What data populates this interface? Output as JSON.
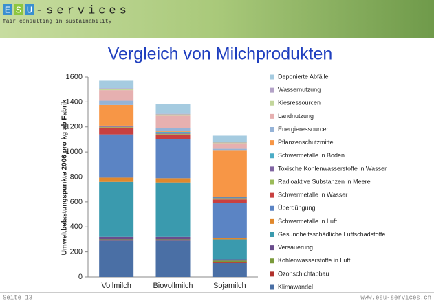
{
  "header": {
    "logo_letters": [
      "E",
      "S",
      "U"
    ],
    "brand": "-services",
    "tagline": "fair consulting in sustainability"
  },
  "footer": {
    "page": "Seite 13",
    "url": "www.esu-services.ch"
  },
  "chart_data": {
    "type": "stacked_bar",
    "title": "Vergleich von Milchprodukten",
    "y_label": "Umweltbelastungspunkte 2006 pro kg ab Fabrik",
    "categories": [
      "Vollmilch",
      "Biovollmilch",
      "Sojamilch"
    ],
    "ylim": [
      0,
      1600
    ],
    "yticks": [
      0,
      200,
      400,
      600,
      800,
      1000,
      1200,
      1400,
      1600
    ],
    "grid": false,
    "legend": "right",
    "series": [
      {
        "name": "Klimawandel",
        "color": "#4a6fa5",
        "values": [
          290,
          290,
          110
        ]
      },
      {
        "name": "Ozonschichtabbau",
        "color": "#b0302c",
        "values": [
          5,
          5,
          5
        ]
      },
      {
        "name": "Kohlenwasserstoffe in Luft",
        "color": "#7a9a3a",
        "values": [
          5,
          5,
          15
        ]
      },
      {
        "name": "Versauerung",
        "color": "#6a4c8c",
        "values": [
          20,
          20,
          10
        ]
      },
      {
        "name": "Gesundheitsschädliche Luftschadstoffe",
        "color": "#3a9aae",
        "values": [
          440,
          435,
          160
        ]
      },
      {
        "name": "Schwermetalle in Luft",
        "color": "#e0882c",
        "values": [
          35,
          35,
          10
        ]
      },
      {
        "name": "Überdüngung",
        "color": "#5b84c4",
        "values": [
          345,
          310,
          280
        ]
      },
      {
        "name": "Schwermetalle in Wasser",
        "color": "#c84040",
        "values": [
          55,
          40,
          30
        ]
      },
      {
        "name": "Radioaktive Substanzen in Meere",
        "color": "#9bbb59",
        "values": [
          5,
          5,
          10
        ]
      },
      {
        "name": "Toxische Kohlenwasserstoffe in Wasser",
        "color": "#8064a2",
        "values": [
          5,
          5,
          5
        ]
      },
      {
        "name": "Schwermetalle in Boden",
        "color": "#4bacc6",
        "values": [
          5,
          10,
          5
        ]
      },
      {
        "name": "Pflanzenschutzmittel",
        "color": "#f79646",
        "values": [
          165,
          5,
          370
        ]
      },
      {
        "name": "Energieressourcen",
        "color": "#95b3d7",
        "values": [
          35,
          25,
          15
        ]
      },
      {
        "name": "Landnutzung",
        "color": "#e6b0b0",
        "values": [
          85,
          100,
          45
        ]
      },
      {
        "name": "Kiesressourcen",
        "color": "#c3d69b",
        "values": [
          10,
          10,
          5
        ]
      },
      {
        "name": "Wassernutzung",
        "color": "#b3a2c7",
        "values": [
          5,
          5,
          5
        ]
      },
      {
        "name": "Deponierte Abfälle",
        "color": "#a5cbe0",
        "values": [
          60,
          80,
          50
        ]
      }
    ]
  }
}
